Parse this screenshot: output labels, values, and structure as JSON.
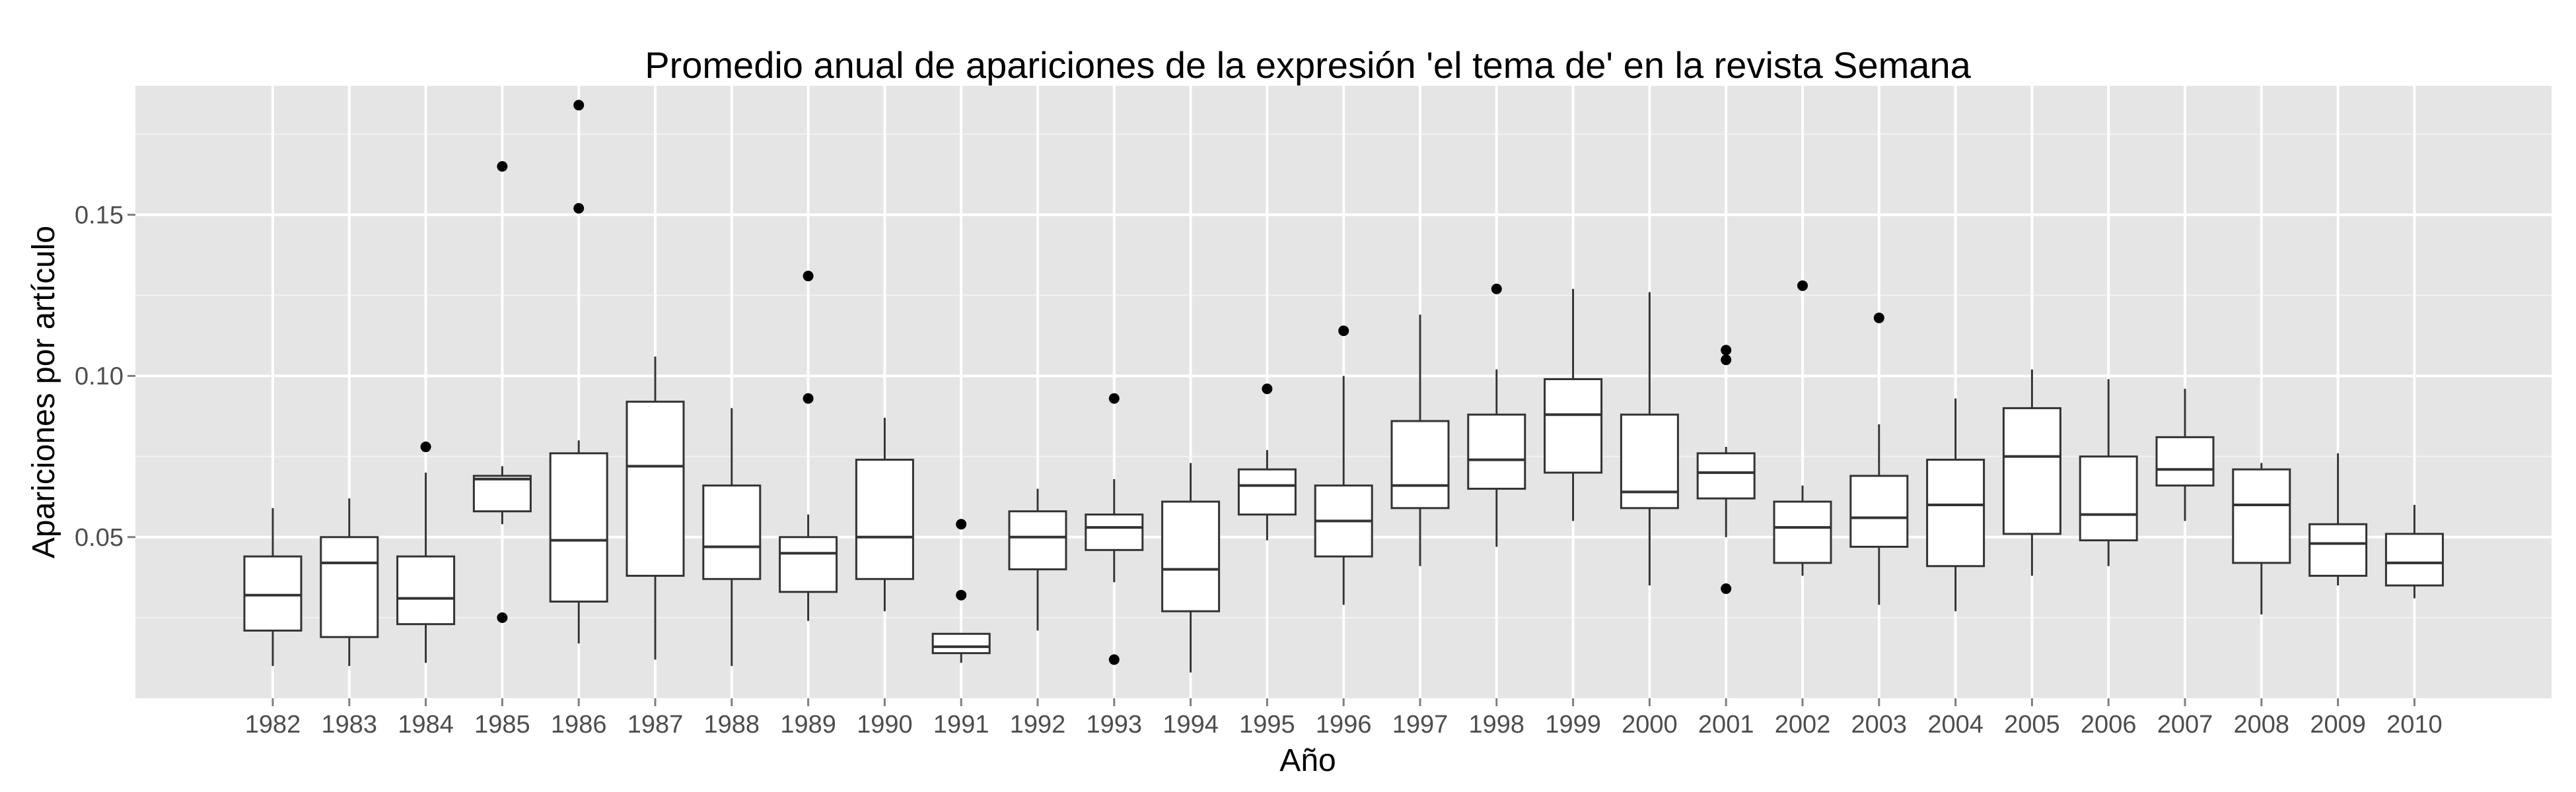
{
  "chart_data": {
    "type": "boxplot",
    "title": "Promedio anual de apariciones de la expresión 'el tema de' en la revista Semana",
    "xlabel": "Año",
    "ylabel": "Apariciones por artículo",
    "ylim": [
      0.0,
      0.19
    ],
    "y_ticks": [
      0.05,
      0.1,
      0.15
    ],
    "y_tick_labels": [
      "0.05",
      "0.10",
      "0.15"
    ],
    "grid": true,
    "background": "#e5e5e5",
    "grid_color": "#ffffff",
    "box_fill": "#ffffff",
    "box_stroke": "#333333",
    "categories": [
      "1982",
      "1983",
      "1984",
      "1985",
      "1986",
      "1987",
      "1988",
      "1989",
      "1990",
      "1991",
      "1992",
      "1993",
      "1994",
      "1995",
      "1996",
      "1997",
      "1998",
      "1999",
      "2000",
      "2001",
      "2002",
      "2003",
      "2004",
      "2005",
      "2006",
      "2007",
      "2008",
      "2009",
      "2010"
    ],
    "boxes": [
      {
        "year": "1982",
        "whisker_low": 0.01,
        "q1": 0.021,
        "median": 0.032,
        "q3": 0.044,
        "whisker_high": 0.059,
        "outliers": []
      },
      {
        "year": "1983",
        "whisker_low": 0.01,
        "q1": 0.019,
        "median": 0.042,
        "q3": 0.05,
        "whisker_high": 0.062,
        "outliers": []
      },
      {
        "year": "1984",
        "whisker_low": 0.011,
        "q1": 0.023,
        "median": 0.031,
        "q3": 0.044,
        "whisker_high": 0.07,
        "outliers": [
          0.078
        ]
      },
      {
        "year": "1985",
        "whisker_low": 0.054,
        "q1": 0.058,
        "median": 0.068,
        "q3": 0.069,
        "whisker_high": 0.072,
        "outliers": [
          0.025,
          0.165
        ]
      },
      {
        "year": "1986",
        "whisker_low": 0.017,
        "q1": 0.03,
        "median": 0.049,
        "q3": 0.076,
        "whisker_high": 0.08,
        "outliers": [
          0.152,
          0.184
        ]
      },
      {
        "year": "1987",
        "whisker_low": 0.012,
        "q1": 0.038,
        "median": 0.072,
        "q3": 0.092,
        "whisker_high": 0.106,
        "outliers": []
      },
      {
        "year": "1988",
        "whisker_low": 0.01,
        "q1": 0.037,
        "median": 0.047,
        "q3": 0.066,
        "whisker_high": 0.09,
        "outliers": []
      },
      {
        "year": "1989",
        "whisker_low": 0.024,
        "q1": 0.033,
        "median": 0.045,
        "q3": 0.05,
        "whisker_high": 0.057,
        "outliers": [
          0.093,
          0.131
        ]
      },
      {
        "year": "1990",
        "whisker_low": 0.027,
        "q1": 0.037,
        "median": 0.05,
        "q3": 0.074,
        "whisker_high": 0.087,
        "outliers": []
      },
      {
        "year": "1991",
        "whisker_low": 0.011,
        "q1": 0.014,
        "median": 0.016,
        "q3": 0.02,
        "whisker_high": 0.02,
        "outliers": [
          0.032,
          0.054
        ]
      },
      {
        "year": "1992",
        "whisker_low": 0.021,
        "q1": 0.04,
        "median": 0.05,
        "q3": 0.058,
        "whisker_high": 0.065,
        "outliers": []
      },
      {
        "year": "1993",
        "whisker_low": 0.036,
        "q1": 0.046,
        "median": 0.053,
        "q3": 0.057,
        "whisker_high": 0.068,
        "outliers": [
          0.012,
          0.093
        ]
      },
      {
        "year": "1994",
        "whisker_low": 0.008,
        "q1": 0.027,
        "median": 0.04,
        "q3": 0.061,
        "whisker_high": 0.073,
        "outliers": []
      },
      {
        "year": "1995",
        "whisker_low": 0.049,
        "q1": 0.057,
        "median": 0.066,
        "q3": 0.071,
        "whisker_high": 0.077,
        "outliers": [
          0.096
        ]
      },
      {
        "year": "1996",
        "whisker_low": 0.029,
        "q1": 0.044,
        "median": 0.055,
        "q3": 0.066,
        "whisker_high": 0.1,
        "outliers": [
          0.114
        ]
      },
      {
        "year": "1997",
        "whisker_low": 0.041,
        "q1": 0.059,
        "median": 0.066,
        "q3": 0.086,
        "whisker_high": 0.119,
        "outliers": []
      },
      {
        "year": "1998",
        "whisker_low": 0.047,
        "q1": 0.065,
        "median": 0.074,
        "q3": 0.088,
        "whisker_high": 0.102,
        "outliers": [
          0.127
        ]
      },
      {
        "year": "1999",
        "whisker_low": 0.055,
        "q1": 0.07,
        "median": 0.088,
        "q3": 0.099,
        "whisker_high": 0.127,
        "outliers": []
      },
      {
        "year": "2000",
        "whisker_low": 0.035,
        "q1": 0.059,
        "median": 0.064,
        "q3": 0.088,
        "whisker_high": 0.126,
        "outliers": []
      },
      {
        "year": "2001",
        "whisker_low": 0.05,
        "q1": 0.062,
        "median": 0.07,
        "q3": 0.076,
        "whisker_high": 0.078,
        "outliers": [
          0.034,
          0.105,
          0.108
        ]
      },
      {
        "year": "2002",
        "whisker_low": 0.038,
        "q1": 0.042,
        "median": 0.053,
        "q3": 0.061,
        "whisker_high": 0.066,
        "outliers": [
          0.128
        ]
      },
      {
        "year": "2003",
        "whisker_low": 0.029,
        "q1": 0.047,
        "median": 0.056,
        "q3": 0.069,
        "whisker_high": 0.085,
        "outliers": [
          0.118
        ]
      },
      {
        "year": "2004",
        "whisker_low": 0.027,
        "q1": 0.041,
        "median": 0.06,
        "q3": 0.074,
        "whisker_high": 0.093,
        "outliers": []
      },
      {
        "year": "2005",
        "whisker_low": 0.038,
        "q1": 0.051,
        "median": 0.075,
        "q3": 0.09,
        "whisker_high": 0.102,
        "outliers": []
      },
      {
        "year": "2006",
        "whisker_low": 0.041,
        "q1": 0.049,
        "median": 0.057,
        "q3": 0.075,
        "whisker_high": 0.099,
        "outliers": []
      },
      {
        "year": "2007",
        "whisker_low": 0.055,
        "q1": 0.066,
        "median": 0.071,
        "q3": 0.081,
        "whisker_high": 0.096,
        "outliers": []
      },
      {
        "year": "2008",
        "whisker_low": 0.026,
        "q1": 0.042,
        "median": 0.06,
        "q3": 0.071,
        "whisker_high": 0.073,
        "outliers": []
      },
      {
        "year": "2009",
        "whisker_low": 0.035,
        "q1": 0.038,
        "median": 0.048,
        "q3": 0.054,
        "whisker_high": 0.076,
        "outliers": []
      },
      {
        "year": "2010",
        "whisker_low": 0.031,
        "q1": 0.035,
        "median": 0.042,
        "q3": 0.051,
        "whisker_high": 0.06,
        "outliers": []
      }
    ]
  }
}
